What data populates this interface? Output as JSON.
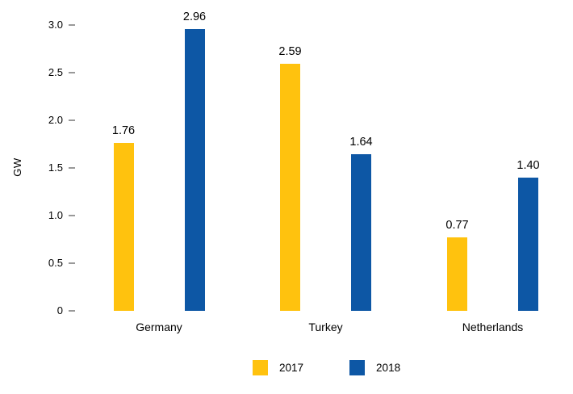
{
  "chart_data": {
    "type": "bar",
    "title": "",
    "ylabel": "GW",
    "xlabel": "",
    "categories": [
      "Germany",
      "Turkey",
      "Netherlands"
    ],
    "series": [
      {
        "name": "2017",
        "color": "#FFC20E",
        "values": [
          1.76,
          2.59,
          0.77
        ],
        "value_labels": [
          "1.76",
          "2.59",
          "0.77"
        ]
      },
      {
        "name": "2018",
        "color": "#0D57A5",
        "values": [
          2.96,
          1.64,
          1.4
        ],
        "value_labels": [
          "2.96",
          "1.64",
          "1.40"
        ]
      }
    ],
    "yticks": [
      0,
      0.5,
      1,
      1.5,
      2,
      2.5,
      3
    ],
    "ytick_labels": [
      "0",
      "0.5",
      "1.0",
      "1.5",
      "2.0",
      "2.5",
      "3.0"
    ],
    "ylim": [
      0,
      3.0
    ],
    "grid": false,
    "axis_lines": false,
    "tick_mark_color": "#999999",
    "background": "#FFFFFF",
    "text_color": "#000000",
    "legend_position": "bottom-center"
  }
}
